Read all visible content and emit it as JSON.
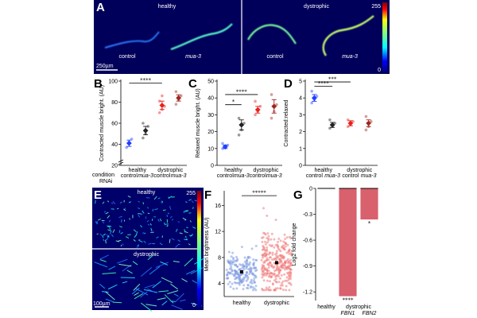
{
  "panelA": {
    "letter": "A",
    "left_label": "healthy",
    "right_label": "dystrophic",
    "worm_labels": [
      "control",
      "mua-3",
      "control",
      "mua-3"
    ],
    "scale_bar": "250µm",
    "colorbar_max": "255",
    "colorbar_min": "0"
  },
  "panelE": {
    "letter": "E",
    "top_label": "healthy",
    "bottom_label": "dystrophic",
    "scale_bar": "100µm",
    "colorbar_max": "255",
    "colorbar_min": "0"
  },
  "legend": {
    "condition_label": "condition",
    "rnai_label": "RNAi"
  },
  "colors": {
    "healthy_control": "#1f3fff",
    "healthy_mua3": "#222222",
    "dystrophic_control": "#e8201a",
    "dystrophic_mua3": "#a02520",
    "bar_fill": "#d9606d",
    "healthy_points": "#7f9be0",
    "dystrophic_points": "#f07c7c"
  },
  "chart_data": [
    {
      "id": "B",
      "letter": "B",
      "type": "scatter",
      "ylabel": "Contracted muscle bright. (AU)",
      "ylim": [
        20,
        100
      ],
      "yticks": [
        20,
        40,
        60,
        80,
        100
      ],
      "axis_break": true,
      "groups": [
        {
          "condition": "healthy",
          "rnai": "control",
          "color_key": "healthy_control",
          "mean": 41,
          "sem": 3,
          "points": [
            37,
            42,
            45
          ]
        },
        {
          "condition": "healthy",
          "rnai": "mua-3",
          "color_key": "healthy_mua3",
          "mean": 53,
          "sem": 4,
          "points": [
            46,
            50,
            57,
            60
          ]
        },
        {
          "condition": "dystrophic",
          "rnai": "control",
          "color_key": "dystrophic_control",
          "mean": 77,
          "sem": 4,
          "points": [
            70,
            73,
            76,
            81,
            86
          ]
        },
        {
          "condition": "dystrophic",
          "rnai": "mua-3",
          "color_key": "dystrophic_mua3",
          "mean": 84,
          "sem": 3,
          "points": [
            78,
            82,
            86,
            90
          ]
        }
      ],
      "x_group_labels": [
        "healthy",
        "dystrophic"
      ],
      "x_rnai_labels": [
        "control",
        "mua-3",
        "control",
        "mua-3"
      ],
      "significance": [
        {
          "from": 1,
          "to": 3,
          "label": "****",
          "y": 98
        }
      ]
    },
    {
      "id": "C",
      "letter": "C",
      "type": "scatter",
      "ylabel": "Relaxed muscle bright. (AU)",
      "ylim": [
        0,
        50
      ],
      "yticks": [
        0,
        10,
        20,
        30,
        40,
        50
      ],
      "groups": [
        {
          "condition": "healthy",
          "rnai": "control",
          "color_key": "healthy_control",
          "mean": 11,
          "sem": 1,
          "points": [
            10,
            11,
            12,
            13
          ]
        },
        {
          "condition": "healthy",
          "rnai": "mua-3",
          "color_key": "healthy_mua3",
          "mean": 24,
          "sem": 3,
          "points": [
            18,
            21,
            25,
            28
          ]
        },
        {
          "condition": "dystrophic",
          "rnai": "control",
          "color_key": "dystrophic_control",
          "mean": 33,
          "sem": 2,
          "points": [
            30,
            32,
            35,
            38
          ]
        },
        {
          "condition": "dystrophic",
          "rnai": "mua-3",
          "color_key": "dystrophic_mua3",
          "mean": 35,
          "sem": 4,
          "points": [
            28,
            32,
            36,
            42
          ]
        }
      ],
      "x_group_labels": [
        "healthy",
        "dystrophic"
      ],
      "x_rnai_labels": [
        "control",
        "mua-3",
        "control",
        "mua-3"
      ],
      "significance": [
        {
          "from": 1,
          "to": 3,
          "label": "****",
          "y": 42
        },
        {
          "from": 1,
          "to": 2,
          "label": "*",
          "y": 36
        }
      ]
    },
    {
      "id": "D",
      "letter": "D",
      "type": "scatter",
      "ylabel": "Contracted:relaxed",
      "ylim": [
        0,
        5
      ],
      "yticks": [
        0,
        1,
        2,
        3,
        4,
        5
      ],
      "groups": [
        {
          "condition": "healthy",
          "rnai": "control",
          "color_key": "healthy_control",
          "mean": 4.0,
          "sem": 0.2,
          "points": [
            3.7,
            3.9,
            4.1,
            4.4
          ]
        },
        {
          "condition": "healthy",
          "rnai": "mua-3",
          "color_key": "healthy_mua3",
          "mean": 2.4,
          "sem": 0.15,
          "points": [
            2.2,
            2.3,
            2.5,
            2.7
          ]
        },
        {
          "condition": "dystrophic",
          "rnai": "control",
          "color_key": "dystrophic_control",
          "mean": 2.5,
          "sem": 0.15,
          "points": [
            2.3,
            2.4,
            2.6,
            2.7
          ]
        },
        {
          "condition": "dystrophic",
          "rnai": "mua-3",
          "color_key": "dystrophic_mua3",
          "mean": 2.5,
          "sem": 0.2,
          "points": [
            2.1,
            2.3,
            2.6,
            2.9
          ]
        }
      ],
      "x_group_labels": [
        "healthy",
        "dystrophic"
      ],
      "x_rnai_labels": [
        "control",
        "mua-3",
        "control",
        "mua-3"
      ],
      "significance": [
        {
          "from": 1,
          "to": 2,
          "label": "****",
          "y": 4.7
        },
        {
          "from": 1,
          "to": 3,
          "label": "***",
          "y": 4.95
        }
      ]
    },
    {
      "id": "F",
      "letter": "F",
      "type": "scatter",
      "ylabel": "Mean brightness (AU)",
      "ylim": [
        2,
        18
      ],
      "yticks": [
        4,
        8,
        12,
        16
      ],
      "categories": [
        "healthy",
        "dystrophic"
      ],
      "series": [
        {
          "name": "healthy",
          "color_key": "healthy_points",
          "n": 200,
          "mean": 5.8,
          "sd": 1.5,
          "min": 3,
          "max": 11
        },
        {
          "name": "dystrophic",
          "color_key": "dystrophic_points",
          "n": 300,
          "mean": 7.2,
          "sd": 2.2,
          "min": 3,
          "max": 17
        }
      ],
      "significance": [
        {
          "from": 1,
          "to": 2,
          "label": "*****",
          "y": 17.5
        }
      ]
    },
    {
      "id": "G",
      "letter": "G",
      "type": "bar",
      "ylabel": "Log2 fold change",
      "ylim": [
        -1.3,
        0
      ],
      "yticks": [
        0,
        -0.3,
        -0.6,
        -0.9,
        -1.2
      ],
      "ytick_labels": [
        "0",
        "-0.3",
        "-0.6",
        "-0.9",
        "-1.2"
      ],
      "categories": [
        "healthy",
        "FBN1",
        "FBN2"
      ],
      "values": [
        0,
        -1.25,
        -0.36
      ],
      "group_label": "dystrophic",
      "bar_stars": [
        "",
        "****",
        "*"
      ]
    }
  ]
}
